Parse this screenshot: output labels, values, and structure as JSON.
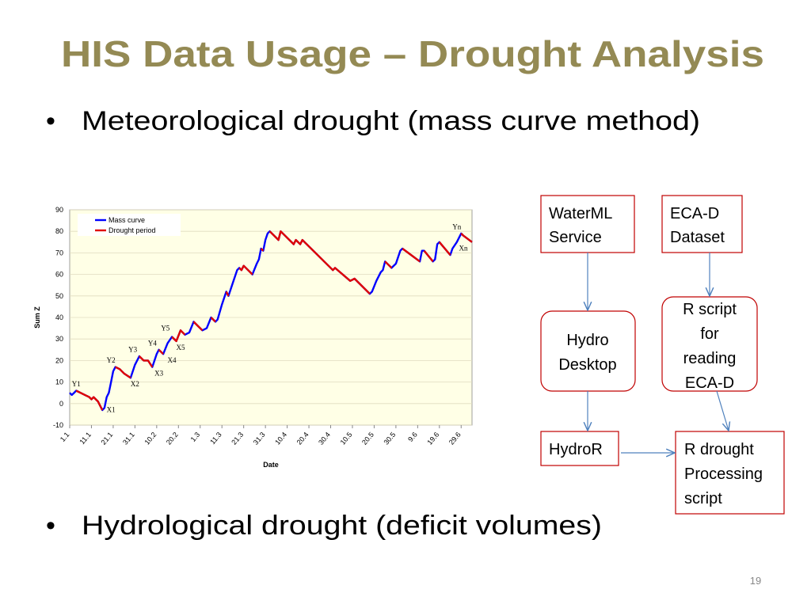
{
  "title": "HIS Data Usage – Drought Analysis",
  "bullets": [
    "Meteorological drought (mass curve method)",
    "Hydrological drought (deficit volumes)"
  ],
  "nodes": [
    {
      "label": [
        "WaterML",
        "Service"
      ]
    },
    {
      "label": [
        "ECA-D",
        "Dataset"
      ]
    },
    {
      "label": [
        "Hydro",
        "Desktop"
      ]
    },
    {
      "label": [
        "R script",
        "for",
        "reading",
        "ECA-D"
      ]
    },
    {
      "label": [
        "HydroR"
      ]
    },
    {
      "label": [
        "R drought",
        "Processing",
        "script"
      ]
    }
  ],
  "page_number": "19",
  "chart_data": {
    "type": "line",
    "xlabel": "Date",
    "ylabel": "Sum Z",
    "x": [
      1,
      2,
      3,
      4,
      6,
      8,
      10,
      11,
      12,
      14,
      16,
      17,
      18,
      19,
      20,
      21,
      22,
      24,
      26,
      29,
      31,
      33,
      35,
      37,
      39,
      41,
      42,
      44,
      46,
      48,
      50,
      52,
      54,
      56,
      58,
      60,
      62,
      64,
      66,
      68,
      69,
      71,
      73,
      74,
      76,
      78,
      79,
      80,
      81,
      85,
      87,
      88,
      89,
      90,
      91,
      92,
      93,
      97,
      98,
      104,
      105,
      107,
      108,
      122,
      123,
      130,
      132,
      139,
      140,
      142,
      144,
      145,
      146,
      148,
      149,
      151,
      153,
      154,
      158,
      162,
      163,
      164,
      168,
      169,
      170,
      171,
      176,
      177,
      179,
      181,
      182,
      186
    ],
    "series": [
      {
        "name": "Mass curve",
        "color": "#0000ff",
        "values": [
          5,
          4,
          5,
          6,
          5,
          4,
          3,
          2,
          3,
          1,
          -3,
          -2,
          3,
          5,
          10,
          15,
          17,
          16,
          14,
          12,
          18,
          22,
          20,
          20,
          17,
          23,
          25,
          23,
          28,
          31,
          29,
          34,
          32,
          33,
          38,
          36,
          34,
          35,
          40,
          38,
          39,
          46,
          52,
          50,
          56,
          62,
          63,
          62,
          64,
          60,
          65,
          67,
          72,
          71,
          76,
          79,
          80,
          76,
          80,
          74,
          76,
          74,
          76,
          62,
          63,
          57,
          58,
          51,
          52,
          57,
          61,
          62,
          66,
          64,
          63,
          65,
          71,
          72,
          69,
          66,
          71,
          71,
          66,
          67,
          74,
          75,
          69,
          72,
          75,
          79,
          78,
          75
        ]
      },
      {
        "name": "Drought period",
        "color": "#e00000",
        "values": [
          null,
          null,
          null,
          6,
          5,
          4,
          3,
          2,
          3,
          1,
          -3,
          null,
          null,
          null,
          null,
          null,
          17,
          16,
          14,
          12,
          null,
          22,
          20,
          20,
          17,
          null,
          25,
          23,
          null,
          31,
          29,
          34,
          32,
          null,
          38,
          36,
          34,
          null,
          40,
          38,
          null,
          null,
          52,
          50,
          null,
          null,
          63,
          62,
          64,
          60,
          null,
          null,
          72,
          71,
          null,
          null,
          80,
          76,
          80,
          74,
          76,
          74,
          76,
          62,
          63,
          57,
          58,
          51,
          null,
          null,
          null,
          null,
          66,
          64,
          63,
          null,
          null,
          72,
          69,
          66,
          null,
          71,
          66,
          null,
          null,
          75,
          69,
          null,
          null,
          79,
          78,
          75
        ]
      }
    ],
    "xlim": [
      1,
      186
    ],
    "xticks": [
      {
        "value": 1,
        "label": "1.1"
      },
      {
        "value": 11,
        "label": "11.1"
      },
      {
        "value": 21,
        "label": "21.1"
      },
      {
        "value": 31,
        "label": "31.1"
      },
      {
        "value": 41,
        "label": "10.2"
      },
      {
        "value": 51,
        "label": "20.2"
      },
      {
        "value": 61,
        "label": "1.3"
      },
      {
        "value": 71,
        "label": "11.3"
      },
      {
        "value": 81,
        "label": "21.3"
      },
      {
        "value": 91,
        "label": "31.3"
      },
      {
        "value": 101,
        "label": "10.4"
      },
      {
        "value": 111,
        "label": "20.4"
      },
      {
        "value": 121,
        "label": "30.4"
      },
      {
        "value": 131,
        "label": "10.5"
      },
      {
        "value": 141,
        "label": "20.5"
      },
      {
        "value": 151,
        "label": "30.5"
      },
      {
        "value": 161,
        "label": "9.6"
      },
      {
        "value": 171,
        "label": "19.6"
      },
      {
        "value": 181,
        "label": "29.6"
      }
    ],
    "ylim": [
      -10,
      90
    ],
    "yticks": [
      -10,
      0,
      10,
      20,
      30,
      40,
      50,
      60,
      70,
      80,
      90
    ],
    "grid": true,
    "legend": "top-left",
    "annotations": [
      {
        "text": "Y1",
        "x": 4,
        "y": 8
      },
      {
        "text": "X1",
        "x": 20,
        "y": -4
      },
      {
        "text": "Y2",
        "x": 20,
        "y": 19
      },
      {
        "text": "X2",
        "x": 31,
        "y": 8
      },
      {
        "text": "Y3",
        "x": 30,
        "y": 24
      },
      {
        "text": "X3",
        "x": 42,
        "y": 13
      },
      {
        "text": "Y4",
        "x": 39,
        "y": 27
      },
      {
        "text": "X4",
        "x": 48,
        "y": 19
      },
      {
        "text": "Y5",
        "x": 45,
        "y": 34
      },
      {
        "text": "X5",
        "x": 52,
        "y": 25
      },
      {
        "text": "Yn",
        "x": 179,
        "y": 81
      },
      {
        "text": "Xn",
        "x": 182,
        "y": 71
      }
    ]
  }
}
